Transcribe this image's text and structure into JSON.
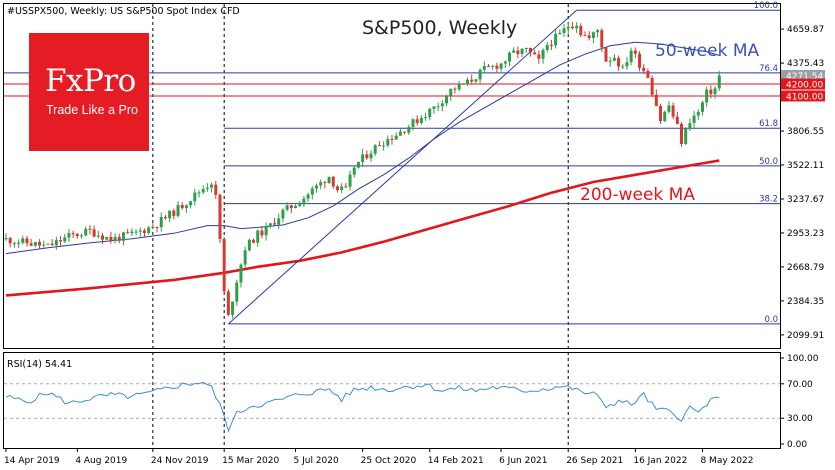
{
  "header": {
    "symbol_line": "#USSPX500, Weekly: US S&P500 Spot Index CFD"
  },
  "brand": {
    "name": "FxPro",
    "tagline": "Trade Like a Pro"
  },
  "colors": {
    "price_up": "#2e9e4a",
    "price_down": "#d43a2e",
    "ma50": "#2a3aa5",
    "ma200": "#e4151b",
    "fib": "#2a3aa5",
    "level": "#e4151b",
    "rsi": "#3c8fd6"
  },
  "chart_data": [
    {
      "type": "candlestick",
      "title": "S&P500, Weekly",
      "ylim": [
        1990,
        4870
      ],
      "y_ticks": [
        "4659.87",
        "4375.43",
        "4091.00",
        "3806.55",
        "3522.11",
        "3237.67",
        "2953.23",
        "2668.79",
        "2384.35",
        "2099.91"
      ],
      "x_ticks": [
        "14 Apr 2019",
        "4 Aug 2019",
        "24 Nov 2019",
        "15 Mar 2020",
        "5 Jul 2020",
        "25 Oct 2020",
        "14 Feb 2021",
        "6 Jun 2021",
        "26 Sep 2021",
        "16 Jan 2022",
        "8 May 2022"
      ],
      "vertical_lines_at": [
        "24 Nov 2019",
        "15 Mar 2020",
        "26 Sep 2021"
      ],
      "price_path": [
        [
          0,
          2900
        ],
        [
          5,
          2870
        ],
        [
          10,
          2840
        ],
        [
          15,
          2925
        ],
        [
          20,
          2970
        ],
        [
          25,
          2900
        ],
        [
          30,
          2940
        ],
        [
          35,
          3010
        ],
        [
          40,
          3130
        ],
        [
          45,
          3270
        ],
        [
          47,
          3330
        ],
        [
          49,
          3380
        ],
        [
          50,
          3250
        ],
        [
          51,
          2900
        ],
        [
          52,
          2450
        ],
        [
          53,
          2250
        ],
        [
          55,
          2560
        ],
        [
          57,
          2830
        ],
        [
          60,
          2940
        ],
        [
          62,
          2980
        ],
        [
          66,
          3130
        ],
        [
          70,
          3220
        ],
        [
          74,
          3340
        ],
        [
          77,
          3430
        ],
        [
          79,
          3320
        ],
        [
          81,
          3310
        ],
        [
          83,
          3510
        ],
        [
          86,
          3610
        ],
        [
          89,
          3700
        ],
        [
          93,
          3780
        ],
        [
          96,
          3850
        ],
        [
          100,
          3950
        ],
        [
          103,
          4030
        ],
        [
          106,
          4150
        ],
        [
          110,
          4210
        ],
        [
          114,
          4320
        ],
        [
          118,
          4370
        ],
        [
          121,
          4460
        ],
        [
          124,
          4480
        ],
        [
          127,
          4390
        ],
        [
          129,
          4530
        ],
        [
          132,
          4610
        ],
        [
          134,
          4690
        ],
        [
          136,
          4710
        ],
        [
          137,
          4630
        ],
        [
          139,
          4580
        ],
        [
          141,
          4650
        ],
        [
          143,
          4400
        ],
        [
          145,
          4430
        ],
        [
          147,
          4320
        ],
        [
          149,
          4490
        ],
        [
          151,
          4370
        ],
        [
          153,
          4270
        ],
        [
          154,
          4140
        ],
        [
          155,
          4030
        ],
        [
          156,
          3900
        ],
        [
          158,
          4020
        ],
        [
          160,
          3840
        ],
        [
          161,
          3720
        ],
        [
          163,
          3900
        ],
        [
          165,
          3960
        ],
        [
          167,
          4120
        ],
        [
          169,
          4160
        ],
        [
          170,
          4271.54
        ]
      ],
      "last_price": "4271.54",
      "fib_levels": [
        {
          "label": "100.0",
          "value": 4818
        },
        {
          "label": "76.4",
          "value": 4293
        },
        {
          "label": "61.8",
          "value": 3830
        },
        {
          "label": "50.0",
          "value": 3515
        },
        {
          "label": "38.2",
          "value": 3199
        },
        {
          "label": "0.0",
          "value": 2192
        }
      ],
      "horizontal_levels": [
        {
          "label": "4200.00",
          "value": 4200
        },
        {
          "label": "4100.00",
          "value": 4100
        }
      ],
      "series": [
        {
          "name": "50-week MA",
          "points": [
            [
              0,
              2780
            ],
            [
              10,
              2830
            ],
            [
              20,
              2870
            ],
            [
              30,
              2905
            ],
            [
              40,
              2950
            ],
            [
              48,
              3015
            ],
            [
              52,
              3015
            ],
            [
              56,
              2990
            ],
            [
              60,
              3000
            ],
            [
              66,
              3020
            ],
            [
              72,
              3080
            ],
            [
              78,
              3180
            ],
            [
              84,
              3320
            ],
            [
              90,
              3440
            ],
            [
              96,
              3580
            ],
            [
              102,
              3740
            ],
            [
              108,
              3880
            ],
            [
              114,
              4000
            ],
            [
              120,
              4120
            ],
            [
              126,
              4240
            ],
            [
              132,
              4360
            ],
            [
              138,
              4450
            ],
            [
              144,
              4520
            ],
            [
              150,
              4550
            ],
            [
              156,
              4535
            ],
            [
              162,
              4500
            ],
            [
              167,
              4470
            ],
            [
              170,
              4440
            ]
          ]
        },
        {
          "name": "200-week MA",
          "points": [
            [
              0,
              2430
            ],
            [
              20,
              2490
            ],
            [
              40,
              2560
            ],
            [
              52,
              2620
            ],
            [
              60,
              2670
            ],
            [
              70,
              2720
            ],
            [
              80,
              2790
            ],
            [
              90,
              2880
            ],
            [
              100,
              2980
            ],
            [
              110,
              3080
            ],
            [
              120,
              3180
            ],
            [
              130,
              3290
            ],
            [
              140,
              3380
            ],
            [
              150,
              3440
            ],
            [
              160,
              3500
            ],
            [
              170,
              3560
            ]
          ]
        }
      ],
      "trendlines": [
        {
          "points": [
            [
              53,
              2192
            ],
            [
              136,
              4818
            ]
          ]
        }
      ]
    },
    {
      "type": "line",
      "title": "RSI(14) 54.41",
      "ylim": [
        0,
        100
      ],
      "y_ticks": [
        "100.00",
        "70.00",
        "30.00",
        "0.00"
      ],
      "levels": [
        70,
        30
      ],
      "series": [
        {
          "name": "RSI(14)",
          "points": [
            [
              0,
              55
            ],
            [
              5,
              49
            ],
            [
              10,
              60
            ],
            [
              15,
              47
            ],
            [
              20,
              53
            ],
            [
              25,
              57
            ],
            [
              30,
              55
            ],
            [
              35,
              60
            ],
            [
              40,
              67
            ],
            [
              45,
              71
            ],
            [
              47,
              72
            ],
            [
              49,
              65
            ],
            [
              51,
              45
            ],
            [
              53,
              18
            ],
            [
              55,
              35
            ],
            [
              58,
              44
            ],
            [
              62,
              47
            ],
            [
              66,
              52
            ],
            [
              70,
              58
            ],
            [
              74,
              61
            ],
            [
              77,
              64
            ],
            [
              80,
              52
            ],
            [
              83,
              63
            ],
            [
              87,
              66
            ],
            [
              91,
              63
            ],
            [
              96,
              67
            ],
            [
              100,
              69
            ],
            [
              104,
              62
            ],
            [
              108,
              65
            ],
            [
              112,
              62
            ],
            [
              116,
              66
            ],
            [
              120,
              64
            ],
            [
              124,
              62
            ],
            [
              128,
              64
            ],
            [
              132,
              67
            ],
            [
              135,
              65
            ],
            [
              137,
              60
            ],
            [
              140,
              59
            ],
            [
              143,
              44
            ],
            [
              146,
              50
            ],
            [
              149,
              46
            ],
            [
              152,
              57
            ],
            [
              155,
              40
            ],
            [
              158,
              38
            ],
            [
              161,
              30
            ],
            [
              163,
              42
            ],
            [
              165,
              36
            ],
            [
              167,
              47
            ],
            [
              170,
              54.41
            ]
          ]
        }
      ]
    }
  ],
  "annotations": {
    "ma50_label": "50-week MA",
    "ma200_label": "200-week MA"
  }
}
